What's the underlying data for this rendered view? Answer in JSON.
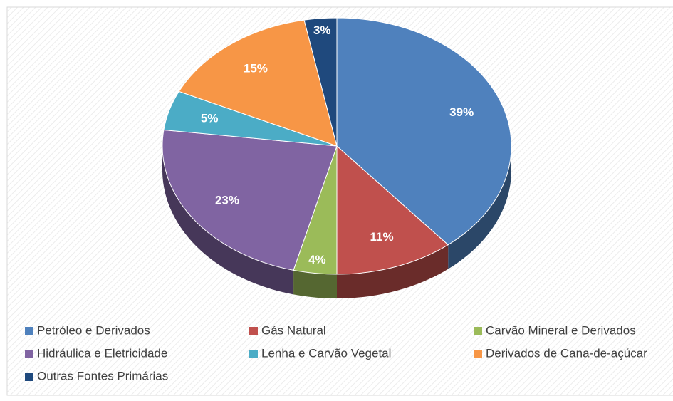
{
  "chart_data": {
    "type": "pie",
    "categories": [
      "Petróleo e Derivados",
      "Gás Natural",
      "Carvão Mineral e Derivados",
      "Hidráulica e Eletricidade",
      "Lenha e Carvão Vegetal",
      "Derivados de Cana-de-açúcar",
      "Outras Fontes Primárias"
    ],
    "values": [
      39,
      11,
      4,
      23,
      5,
      15,
      3
    ],
    "value_labels": [
      "39%",
      "11%",
      "4%",
      "23%",
      "5%",
      "15%",
      "3%"
    ],
    "colors": [
      "#4f81bd",
      "#c0504d",
      "#9bbb59",
      "#8064a2",
      "#4bacc6",
      "#f79646",
      "#1f497d"
    ],
    "legend": "bottom"
  }
}
